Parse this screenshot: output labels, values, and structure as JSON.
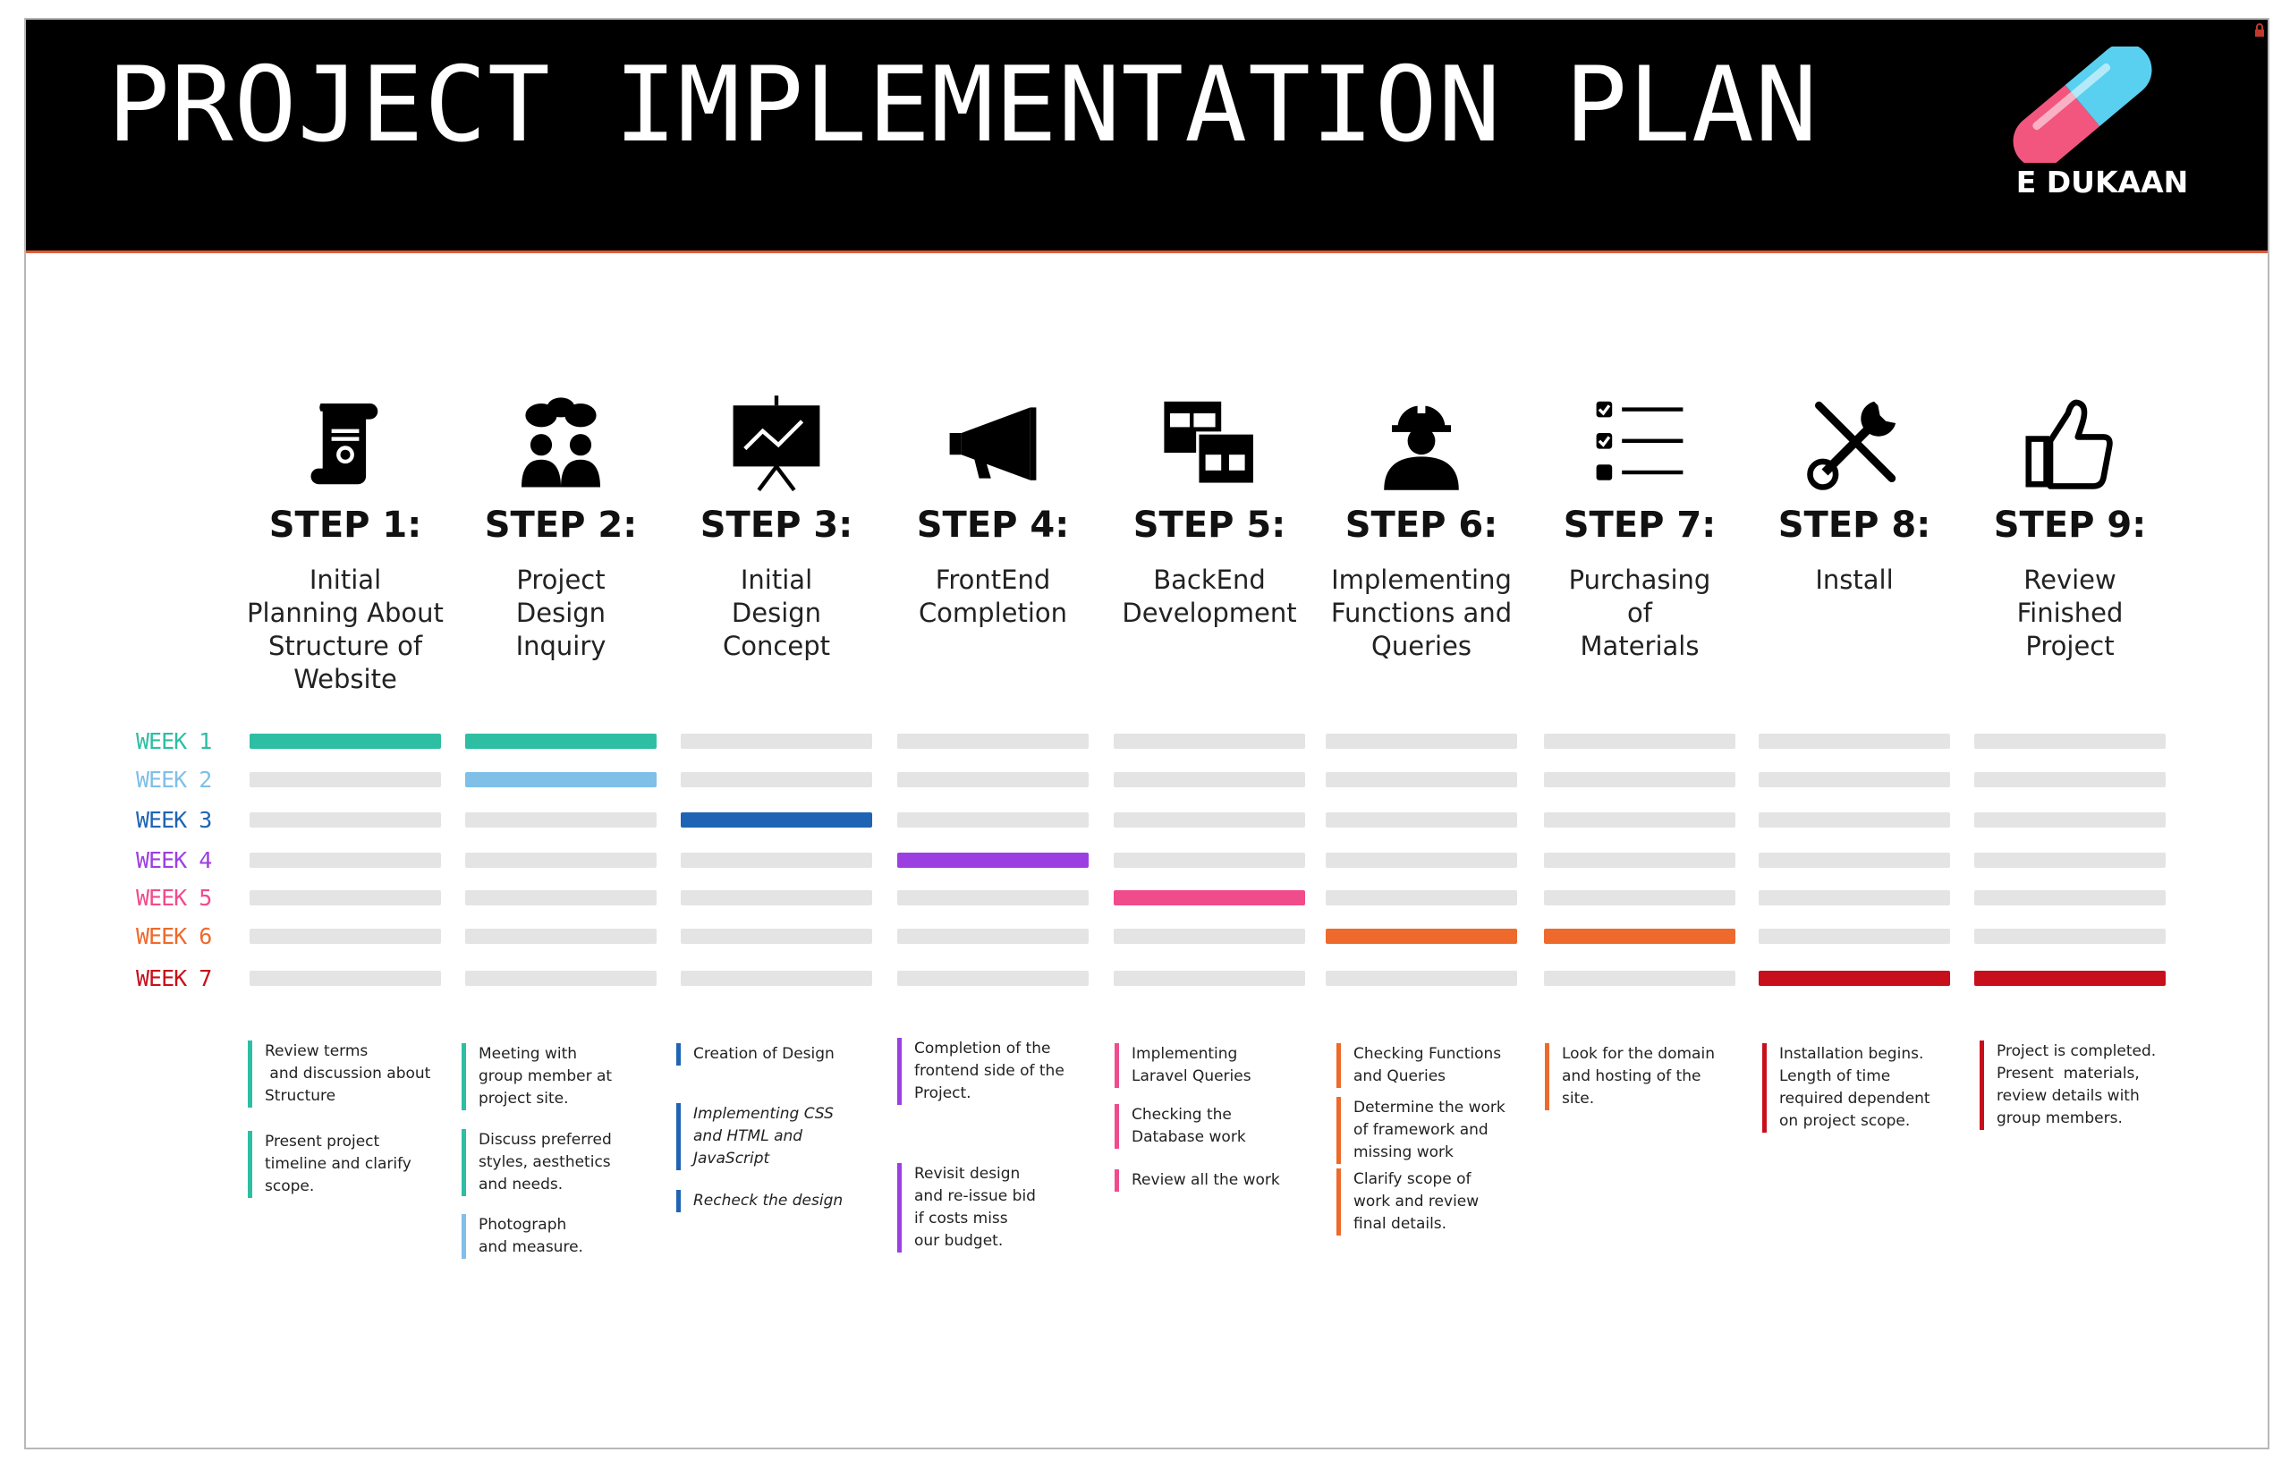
{
  "header": {
    "title": "PROJECT IMPLEMENTATION PLAN",
    "logo_text": "E DUKAAN"
  },
  "colors": {
    "week1": "#2ebea4",
    "week2": "#7fbfe8",
    "week3": "#1f64b4",
    "week4": "#9b3fe2",
    "week5": "#f04c8c",
    "week6": "#ee6a2c",
    "week7": "#c8101c",
    "inactive_bar": "#e4e4e4"
  },
  "steps": [
    {
      "label": "STEP 1:",
      "desc": [
        "Initial",
        "Planning About",
        "Structure of",
        "Website"
      ],
      "icon": "scroll-certificate-icon"
    },
    {
      "label": "STEP 2:",
      "desc": [
        "Project",
        "Design",
        "Inquiry"
      ],
      "icon": "people-discussion-icon"
    },
    {
      "label": "STEP 3:",
      "desc": [
        "Initial",
        "Design",
        "Concept"
      ],
      "icon": "presentation-board-icon"
    },
    {
      "label": "STEP 4:",
      "desc": [
        "FrontEnd",
        "Completion"
      ],
      "icon": "megaphone-icon"
    },
    {
      "label": "STEP 5:",
      "desc": [
        "BackEnd",
        "Development"
      ],
      "icon": "windows-layout-icon"
    },
    {
      "label": "STEP 6:",
      "desc": [
        "Implementing",
        "Functions and",
        "Queries"
      ],
      "icon": "worker-helmet-icon"
    },
    {
      "label": "STEP 7:",
      "desc": [
        "Purchasing",
        "of",
        "Materials"
      ],
      "icon": "checklist-icon"
    },
    {
      "label": "STEP 8:",
      "desc": [
        "Install"
      ],
      "icon": "tools-icon"
    },
    {
      "label": "STEP 9:",
      "desc": [
        "Review",
        "Finished",
        "Project"
      ],
      "icon": "thumbs-up-icon"
    }
  ],
  "weeks": [
    "WEEK 1",
    "WEEK 2",
    "WEEK 3",
    "WEEK 4",
    "WEEK 5",
    "WEEK 6",
    "WEEK 7"
  ],
  "schedule": [
    {
      "step": 1,
      "week": 1
    },
    {
      "step": 2,
      "week": 1
    },
    {
      "step": 2,
      "week": 2
    },
    {
      "step": 3,
      "week": 3
    },
    {
      "step": 4,
      "week": 4
    },
    {
      "step": 5,
      "week": 5
    },
    {
      "step": 6,
      "week": 6
    },
    {
      "step": 7,
      "week": 6
    },
    {
      "step": 8,
      "week": 7
    },
    {
      "step": 9,
      "week": 7
    }
  ],
  "notes": [
    [
      {
        "lines": [
          "Review terms",
          " and discussion about",
          "Structure"
        ],
        "week": 1
      },
      {
        "lines": [
          "Present project",
          "timeline and clarify",
          "scope."
        ],
        "week": 1
      }
    ],
    [
      {
        "lines": [
          "Meeting with",
          "group member at",
          "project site."
        ],
        "week": 1
      },
      {
        "lines": [
          "Discuss preferred",
          "styles, aesthetics",
          "and needs."
        ],
        "week": 1
      },
      {
        "lines": [
          "Photograph",
          "and measure."
        ],
        "week": 2
      }
    ],
    [
      {
        "lines": [
          "Creation of Design"
        ],
        "week": 3
      },
      {
        "lines": [
          "Implementing CSS",
          "and HTML and",
          "JavaScript"
        ],
        "week": 3,
        "italic": true
      },
      {
        "lines": [
          "Recheck the design"
        ],
        "week": 3,
        "italic": true
      }
    ],
    [
      {
        "lines": [
          "Completion of the",
          "frontend side of the",
          "Project."
        ],
        "week": 4
      },
      {
        "lines": [
          "Revisit design",
          "and re-issue bid",
          "if costs miss",
          "our budget."
        ],
        "week": 4
      }
    ],
    [
      {
        "lines": [
          "Implementing",
          "Laravel Queries"
        ],
        "week": 5
      },
      {
        "lines": [
          "Checking the",
          "Database work"
        ],
        "week": 5
      },
      {
        "lines": [
          "Review all the work"
        ],
        "week": 5
      }
    ],
    [
      {
        "lines": [
          "Checking Functions",
          "and Queries"
        ],
        "week": 6
      },
      {
        "lines": [
          "Determine the work",
          "of framework and",
          "missing work"
        ],
        "week": 6
      },
      {
        "lines": [
          "Clarify scope of",
          "work and review",
          "final details."
        ],
        "week": 6
      }
    ],
    [
      {
        "lines": [
          "Look for the domain",
          "and hosting of the",
          "site."
        ],
        "week": 6
      }
    ],
    [
      {
        "lines": [
          "Installation begins.",
          "Length of time",
          "required dependent",
          "on project scope."
        ],
        "week": 7
      }
    ],
    [
      {
        "lines": [
          "Project is completed.",
          "Present  materials,",
          "review details with",
          "group members."
        ],
        "week": 7
      }
    ]
  ]
}
